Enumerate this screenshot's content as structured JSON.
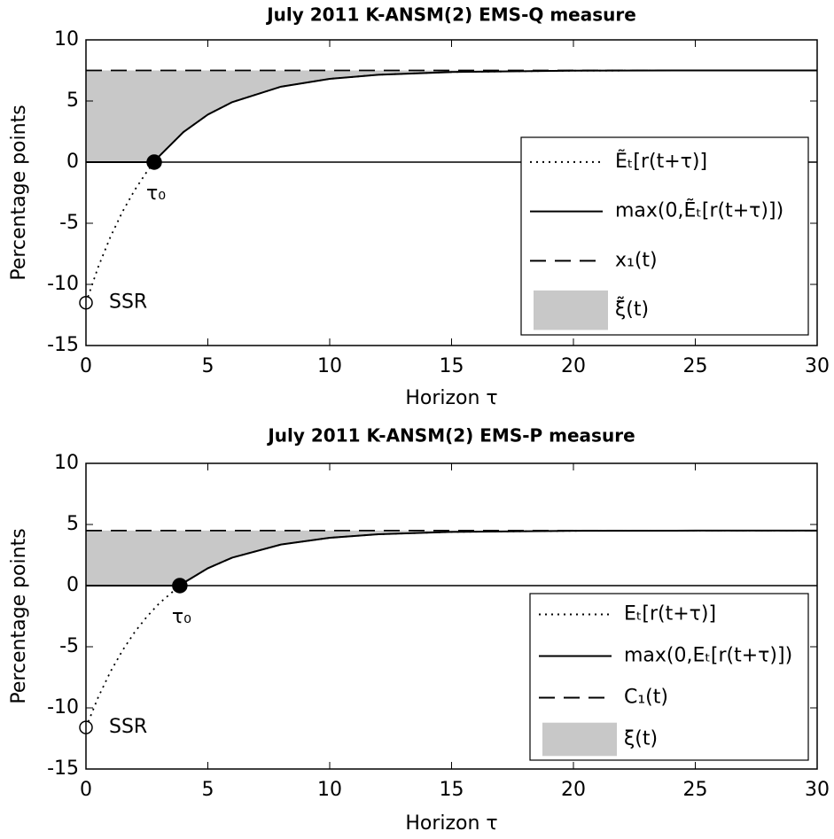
{
  "chart_data": [
    {
      "type": "line",
      "title": "July 2011 K-ANSM(2) EMS-Q measure",
      "xlabel": "Horizon τ",
      "ylabel": "Percentage points",
      "xlim": [
        0,
        30
      ],
      "ylim": [
        -15,
        10
      ],
      "xticks": [
        0,
        5,
        10,
        15,
        20,
        25,
        30
      ],
      "yticks": [
        -15,
        -10,
        -5,
        0,
        5,
        10
      ],
      "x": [
        0,
        0.5,
        1,
        1.5,
        2,
        2.5,
        2.8,
        3,
        4,
        5,
        6,
        8,
        10,
        12,
        15,
        20,
        25,
        30
      ],
      "zero_line": 0,
      "series": [
        {
          "name": "Ẽₜ[r(t+τ)]",
          "color": "#000000",
          "style": "dotted",
          "values": [
            -11.5,
            -8.59,
            -6.13,
            -4.05,
            -2.28,
            -0.78,
            0,
            0.48,
            2.46,
            3.89,
            4.91,
            6.17,
            6.81,
            7.15,
            7.37,
            7.48,
            7.5,
            7.5
          ]
        },
        {
          "name": "max(0,Ẽₜ[r(t+τ)])",
          "color": "#000000",
          "style": "solid",
          "values": [
            0,
            0,
            0,
            0,
            0,
            0,
            0,
            0.48,
            2.46,
            3.89,
            4.91,
            6.17,
            6.81,
            7.15,
            7.37,
            7.48,
            7.5,
            7.5
          ]
        },
        {
          "name": "x₁(t)",
          "color": "#000000",
          "style": "dashed",
          "values": [
            7.5,
            7.5,
            7.5,
            7.5,
            7.5,
            7.5,
            7.5,
            7.5,
            7.5,
            7.5,
            7.5,
            7.5,
            7.5,
            7.5,
            7.5,
            7.5,
            7.5,
            7.5
          ]
        },
        {
          "name": "ξ̃(t)",
          "color": "#c8c8c8",
          "style": "area",
          "between": [
            1,
            2
          ]
        }
      ],
      "markers": [
        {
          "label": "τ₀",
          "x": 2.8,
          "y": 0,
          "filled": true
        },
        {
          "label": "SSR",
          "x": 0,
          "y": -11.5,
          "filled": false
        }
      ]
    },
    {
      "type": "line",
      "title": "July 2011 K-ANSM(2) EMS-P measure",
      "xlabel": "Horizon τ",
      "ylabel": "Percentage points",
      "xlim": [
        0,
        30
      ],
      "ylim": [
        -15,
        10
      ],
      "xticks": [
        0,
        5,
        10,
        15,
        20,
        25,
        30
      ],
      "yticks": [
        -15,
        -10,
        -5,
        0,
        5,
        10
      ],
      "x": [
        0,
        0.5,
        1,
        1.5,
        2,
        2.5,
        3,
        3.85,
        4,
        5,
        6,
        8,
        10,
        12,
        15,
        20,
        25,
        30
      ],
      "zero_line": 0,
      "series": [
        {
          "name": "Eₜ[r(t+τ)]",
          "color": "#000000",
          "style": "dotted",
          "values": [
            -11.6,
            -9.14,
            -7.06,
            -5.3,
            -3.8,
            -2.54,
            -1.46,
            0,
            0.22,
            1.42,
            2.29,
            3.36,
            3.91,
            4.2,
            4.39,
            4.48,
            4.5,
            4.5
          ]
        },
        {
          "name": "max(0,Eₜ[r(t+τ)])",
          "color": "#000000",
          "style": "solid",
          "values": [
            0,
            0,
            0,
            0,
            0,
            0,
            0,
            0,
            0.22,
            1.42,
            2.29,
            3.36,
            3.91,
            4.2,
            4.39,
            4.48,
            4.5,
            4.5
          ]
        },
        {
          "name": "C₁(t)",
          "color": "#000000",
          "style": "dashed",
          "values": [
            4.5,
            4.5,
            4.5,
            4.5,
            4.5,
            4.5,
            4.5,
            4.5,
            4.5,
            4.5,
            4.5,
            4.5,
            4.5,
            4.5,
            4.5,
            4.5,
            4.5,
            4.5
          ]
        },
        {
          "name": "ξ(t)",
          "color": "#c8c8c8",
          "style": "area",
          "between": [
            1,
            2
          ]
        }
      ],
      "markers": [
        {
          "label": "τ₀",
          "x": 3.85,
          "y": 0,
          "filled": true
        },
        {
          "label": "SSR",
          "x": 0,
          "y": -11.6,
          "filled": false
        }
      ]
    }
  ]
}
